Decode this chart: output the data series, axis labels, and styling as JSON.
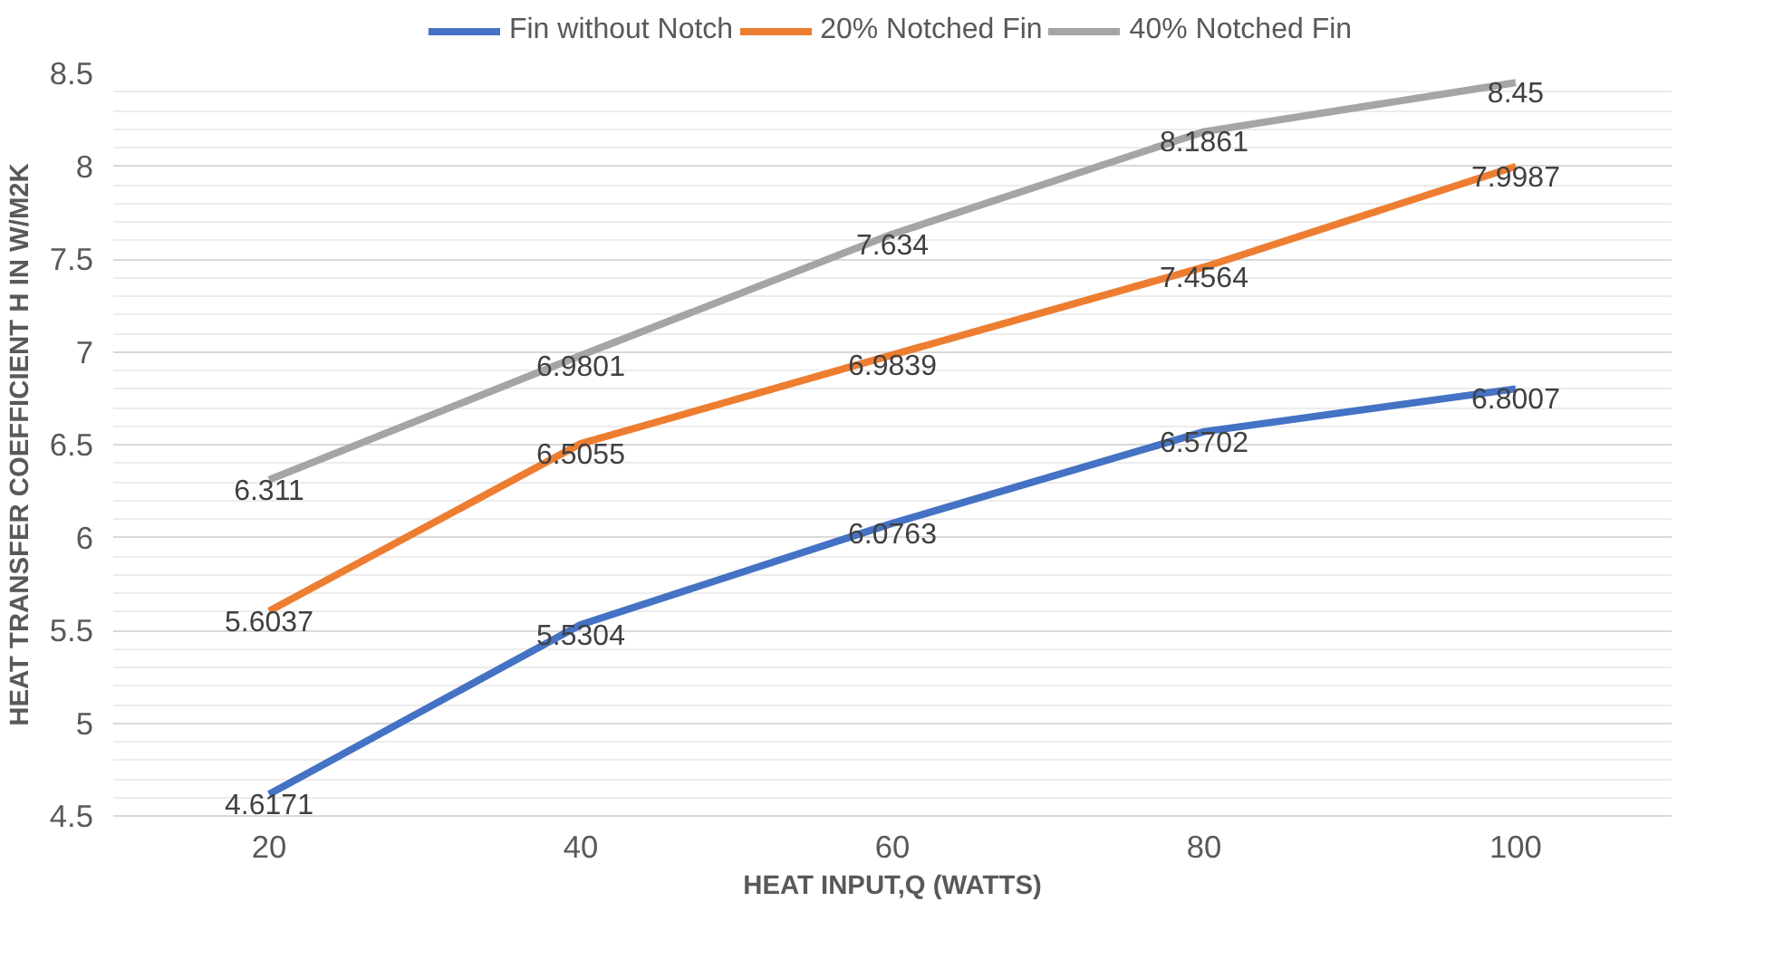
{
  "chart_data": {
    "type": "line",
    "xlabel": "HEAT INPUT,Q (WATTS)",
    "ylabel": "HEAT TRANSFER COEFFICIENT H IN W/M2K",
    "categories": [
      "20",
      "40",
      "60",
      "80",
      "100"
    ],
    "series": [
      {
        "name": "Fin without Notch",
        "color": "#4472c4",
        "values": [
          4.6171,
          5.5304,
          6.0763,
          6.5702,
          6.8007
        ]
      },
      {
        "name": "20% Notched Fin",
        "color": "#ed7d31",
        "values": [
          5.6037,
          6.5055,
          6.9839,
          7.4564,
          7.9987
        ]
      },
      {
        "name": "40% Notched Fin",
        "color": "#a5a5a5",
        "values": [
          6.311,
          6.9801,
          7.634,
          8.1861,
          8.45
        ]
      }
    ],
    "ylim": [
      4.5,
      8.5
    ],
    "yticks": [
      4.5,
      5,
      5.5,
      6,
      6.5,
      7,
      7.5,
      8,
      8.5
    ],
    "grid": "y",
    "legend": "top",
    "marker": "none",
    "line_style": "solid",
    "data_labels": true
  }
}
